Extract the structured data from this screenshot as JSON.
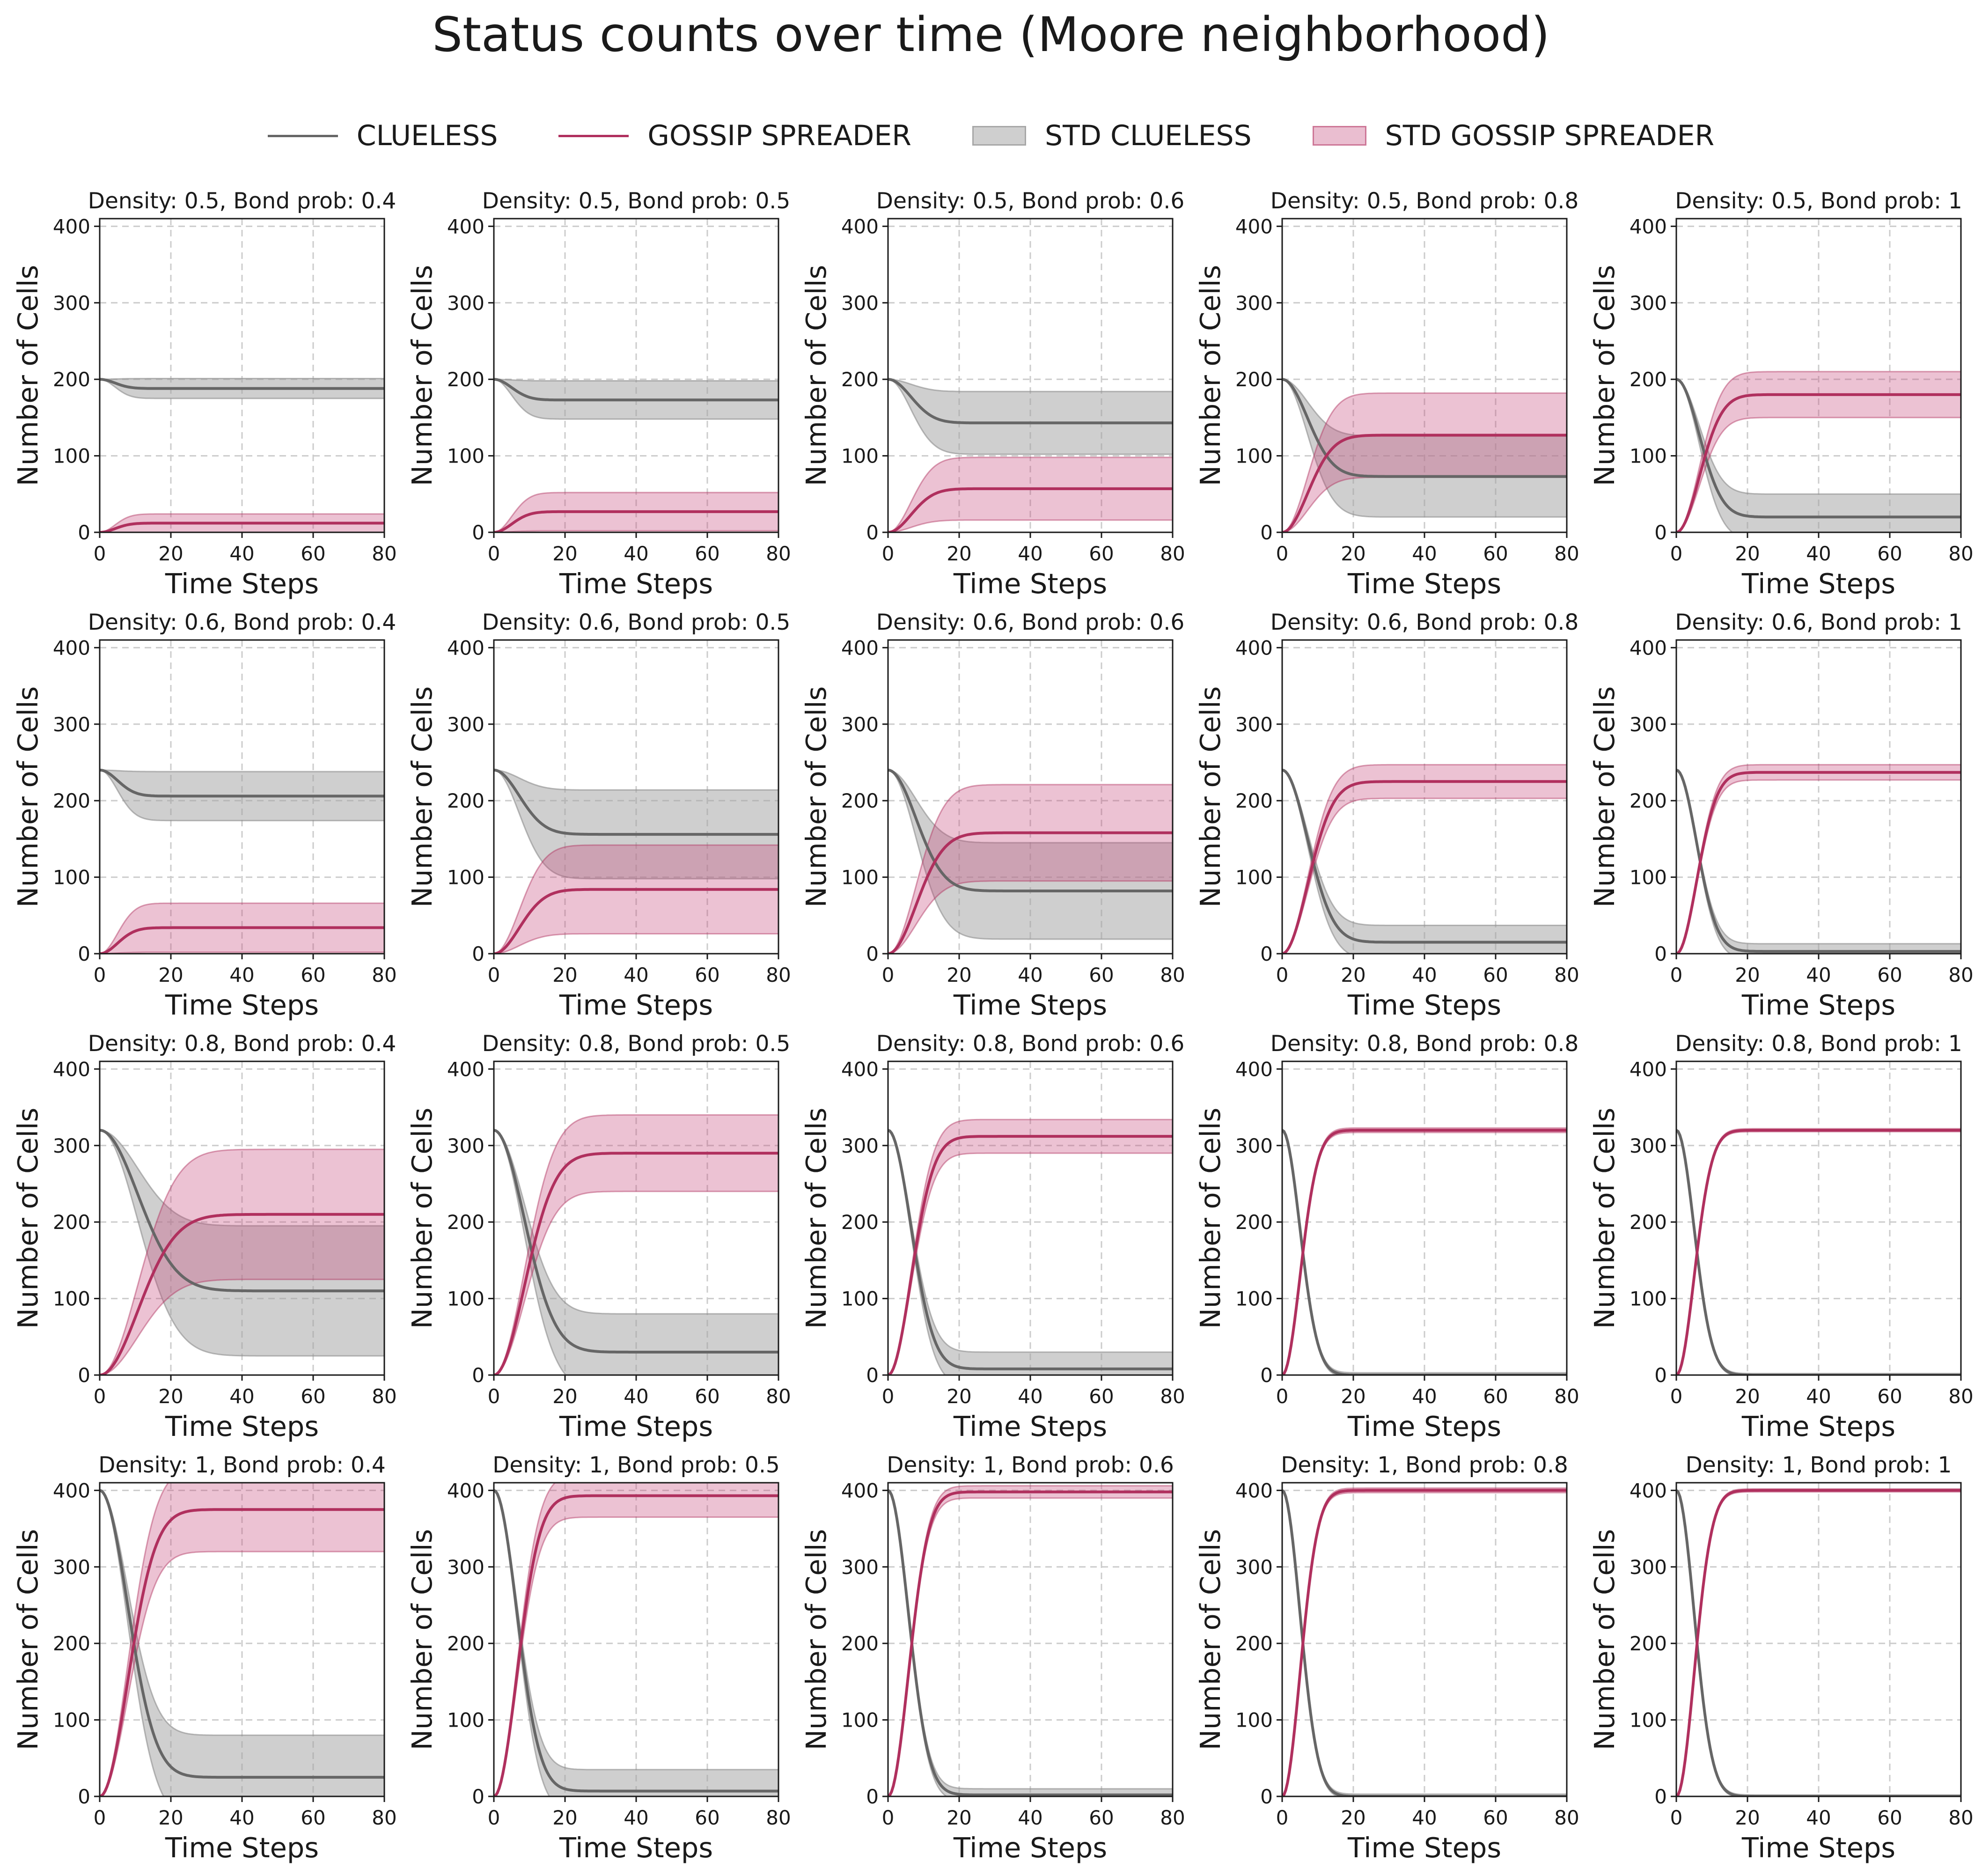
{
  "title": "Status counts over time (Moore neighborhood)",
  "legend": [
    {
      "label": "CLUELESS",
      "kind": "line",
      "color": "#666666"
    },
    {
      "label": "GOSSIP SPREADER",
      "kind": "line",
      "color": "#b0305e"
    },
    {
      "label": "STD CLUELESS",
      "kind": "band",
      "color": "#bdbdbd"
    },
    {
      "label": "STD GOSSIP SPREADER",
      "kind": "band",
      "color": "#dca3b8"
    }
  ],
  "chart_data": {
    "type": "line",
    "colors": {
      "clueless": "#666666",
      "spreader": "#b0305e",
      "clueless_band": "#bdbdbd",
      "spreader_band": "#dca3b8"
    },
    "xlabel": "Time Steps",
    "ylabel": "Number of Cells",
    "xlim": [
      0,
      80
    ],
    "ylim": [
      0,
      410
    ],
    "xticks": [
      0,
      20,
      40,
      60,
      80
    ],
    "yticks": [
      0,
      100,
      200,
      300,
      400
    ],
    "grid": true,
    "legend_position": "top-center",
    "panels": [
      {
        "title": "Density: 0.5, Bond prob: 0.4",
        "initial": 200,
        "clueless_final": 188,
        "spreader_final": 12,
        "rate": 6,
        "clueless_std": 13,
        "spreader_std": 12
      },
      {
        "title": "Density: 0.5, Bond prob: 0.5",
        "initial": 200,
        "clueless_final": 173,
        "spreader_final": 27,
        "rate": 7,
        "clueless_std": 25,
        "spreader_std": 25
      },
      {
        "title": "Density: 0.5, Bond prob: 0.6",
        "initial": 200,
        "clueless_final": 143,
        "spreader_final": 57,
        "rate": 9,
        "clueless_std": 41,
        "spreader_std": 41
      },
      {
        "title": "Density: 0.5, Bond prob: 0.8",
        "initial": 200,
        "clueless_final": 73,
        "spreader_final": 127,
        "rate": 10,
        "clueless_std": 53,
        "spreader_std": 55
      },
      {
        "title": "Density: 0.5, Bond prob: 1",
        "initial": 200,
        "clueless_final": 20,
        "spreader_final": 180,
        "rate": 9,
        "clueless_std": 30,
        "spreader_std": 30
      },
      {
        "title": "Density: 0.6, Bond prob: 0.4",
        "initial": 240,
        "clueless_final": 206,
        "spreader_final": 34,
        "rate": 7,
        "clueless_std": 32,
        "spreader_std": 32
      },
      {
        "title": "Density: 0.6, Bond prob: 0.5",
        "initial": 240,
        "clueless_final": 156,
        "spreader_final": 84,
        "rate": 10,
        "clueless_std": 58,
        "spreader_std": 58
      },
      {
        "title": "Density: 0.6, Bond prob: 0.6",
        "initial": 240,
        "clueless_final": 82,
        "spreader_final": 158,
        "rate": 11,
        "clueless_std": 63,
        "spreader_std": 63
      },
      {
        "title": "Density: 0.6, Bond prob: 0.8",
        "initial": 240,
        "clueless_final": 15,
        "spreader_final": 225,
        "rate": 10,
        "clueless_std": 22,
        "spreader_std": 22
      },
      {
        "title": "Density: 0.6, Bond prob: 1",
        "initial": 240,
        "clueless_final": 3,
        "spreader_final": 237,
        "rate": 8,
        "clueless_std": 10,
        "spreader_std": 10
      },
      {
        "title": "Density: 0.8, Bond prob: 0.4",
        "initial": 320,
        "clueless_final": 110,
        "spreader_final": 210,
        "rate": 15,
        "clueless_std": 85,
        "spreader_std": 85
      },
      {
        "title": "Density: 0.8, Bond prob: 0.5",
        "initial": 320,
        "clueless_final": 30,
        "spreader_final": 290,
        "rate": 12,
        "clueless_std": 50,
        "spreader_std": 50
      },
      {
        "title": "Density: 0.8, Bond prob: 0.6",
        "initial": 320,
        "clueless_final": 8,
        "spreader_final": 312,
        "rate": 9,
        "clueless_std": 22,
        "spreader_std": 22
      },
      {
        "title": "Density: 0.8, Bond prob: 0.8",
        "initial": 320,
        "clueless_final": 0,
        "spreader_final": 320,
        "rate": 7,
        "clueless_std": 3,
        "spreader_std": 3
      },
      {
        "title": "Density: 0.8, Bond prob: 1",
        "initial": 320,
        "clueless_final": 0,
        "spreader_final": 320,
        "rate": 7,
        "clueless_std": 2,
        "spreader_std": 2
      },
      {
        "title": "Density: 1, Bond prob: 0.4",
        "initial": 400,
        "clueless_final": 25,
        "spreader_final": 375,
        "rate": 11,
        "clueless_std": 55,
        "spreader_std": 55
      },
      {
        "title": "Density: 1, Bond prob: 0.5",
        "initial": 400,
        "clueless_final": 7,
        "spreader_final": 393,
        "rate": 9,
        "clueless_std": 28,
        "spreader_std": 28
      },
      {
        "title": "Density: 1, Bond prob: 0.6",
        "initial": 400,
        "clueless_final": 2,
        "spreader_final": 398,
        "rate": 8,
        "clueless_std": 8,
        "spreader_std": 8
      },
      {
        "title": "Density: 1, Bond prob: 0.8",
        "initial": 400,
        "clueless_final": 0,
        "spreader_final": 400,
        "rate": 7,
        "clueless_std": 3,
        "spreader_std": 3
      },
      {
        "title": "Density: 1, Bond prob: 1",
        "initial": 400,
        "clueless_final": 0,
        "spreader_final": 400,
        "rate": 7,
        "clueless_std": 2,
        "spreader_std": 2
      }
    ]
  }
}
